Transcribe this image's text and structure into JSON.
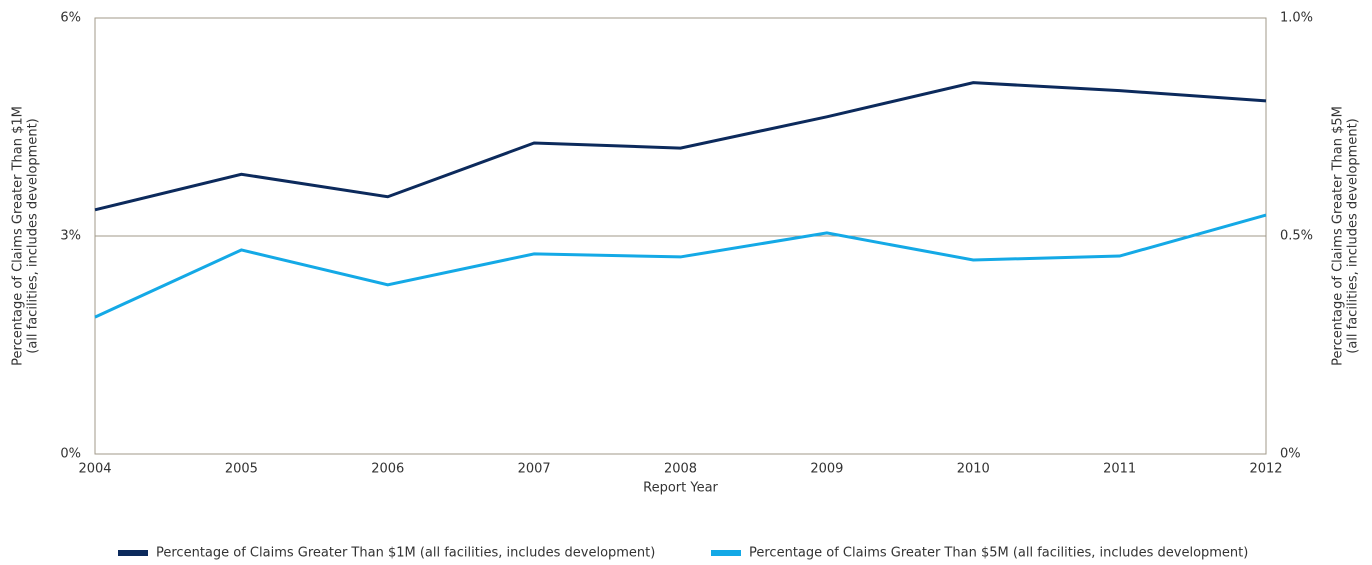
{
  "chart_data": {
    "type": "line",
    "xlabel": "Report Year",
    "ylabel": [
      "Percentage of Claims Greater Than $1M",
      "(all facilities, includes development)"
    ],
    "y2label": [
      "Percentage of Claims Greater Than $5M",
      "(all facilities, includes development)"
    ],
    "categories": [
      "2004",
      "2005",
      "2006",
      "2007",
      "2008",
      "2009",
      "2010",
      "2011",
      "2012"
    ],
    "series": [
      {
        "name": "Percentage of Claims Greater Than $1M (all facilities, includes development)",
        "color": "#0c2a5c",
        "axis": "y",
        "values": [
          3.36,
          3.85,
          3.54,
          4.28,
          4.21,
          4.64,
          5.11,
          5.0,
          4.86
        ]
      },
      {
        "name": "Percentage of Claims Greater Than $5M (all facilities, includes development)",
        "color": "#14a9e6",
        "axis": "y2",
        "values": [
          0.314,
          0.468,
          0.388,
          0.459,
          0.452,
          0.507,
          0.445,
          0.454,
          0.548
        ]
      }
    ],
    "ylim": [
      0,
      6
    ],
    "yticks": [
      {
        "value": 0,
        "label": "0%"
      },
      {
        "value": 3,
        "label": "3%"
      },
      {
        "value": 6,
        "label": "6%"
      }
    ],
    "y2lim": [
      0,
      1
    ],
    "y2ticks": [
      {
        "value": 0,
        "label": "0%"
      },
      {
        "value": 0.5,
        "label": "0.5%"
      },
      {
        "value": 1,
        "label": "1.0%"
      }
    ],
    "grid": true,
    "legend": "bottom"
  }
}
